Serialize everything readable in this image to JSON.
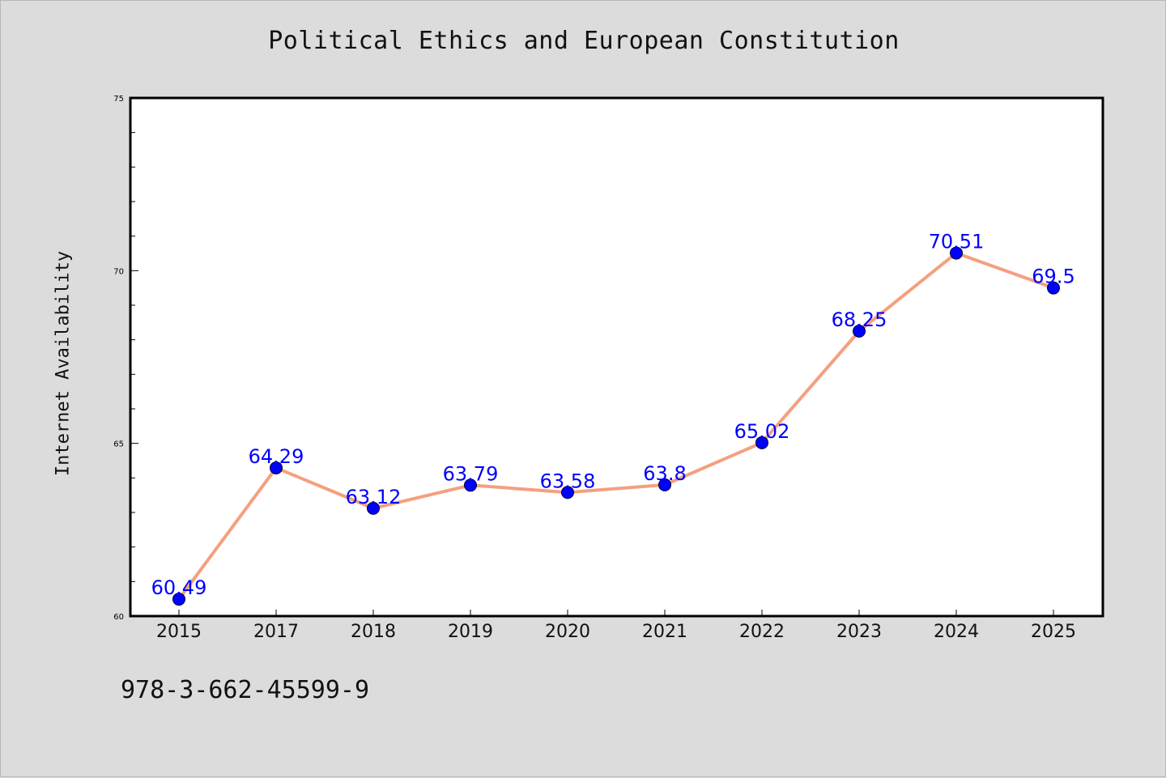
{
  "chart_data": {
    "type": "line",
    "title": "Political Ethics and European Constitution",
    "xlabel": "",
    "ylabel": "Internet Availability",
    "categories": [
      "2015",
      "2017",
      "2018",
      "2019",
      "2020",
      "2021",
      "2022",
      "2023",
      "2024",
      "2025"
    ],
    "series": [
      {
        "values": [
          60.49,
          64.29,
          63.12,
          63.79,
          63.58,
          63.8,
          65.02,
          68.25,
          70.51,
          69.5
        ],
        "labels": [
          "60.49",
          "64.29",
          "63.12",
          "63.79",
          "63.58",
          "63.8",
          "65.02",
          "68.25",
          "70.51",
          "69.5"
        ]
      }
    ],
    "ylim": [
      60,
      75
    ],
    "yticks": [
      60,
      65,
      70,
      75
    ],
    "ytick_labels": [
      "60",
      "65",
      "70",
      "75"
    ],
    "grid": false,
    "line_color": "#f4a07f",
    "marker_color": "#0000ff",
    "label_color": "#0000ff"
  },
  "footer": {
    "isbn": "978-3-662-45599-9"
  }
}
